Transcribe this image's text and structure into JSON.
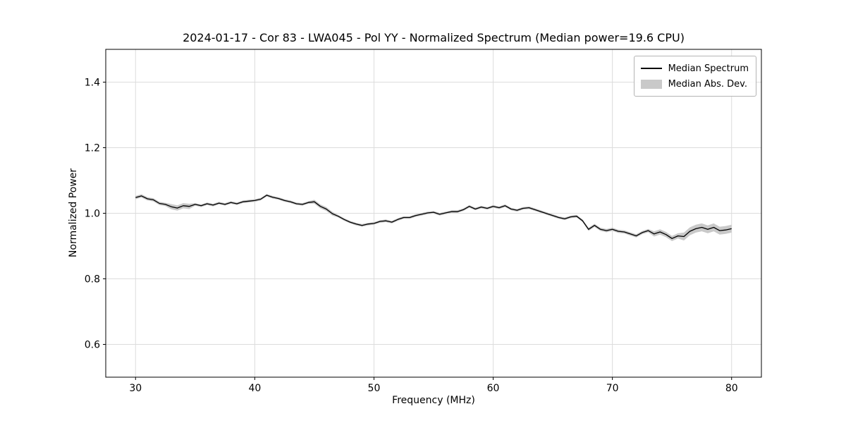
{
  "figure": {
    "title": "2024-01-17 - Cor 83 - LWA045 - Pol YY - Normalized Spectrum (Median power=19.6 CPU)",
    "xlabel": "Frequency (MHz)",
    "ylabel": "Normalized Power"
  },
  "legend": {
    "entries": [
      {
        "label": "Median Spectrum",
        "type": "line",
        "color": "#000000"
      },
      {
        "label": "Median Abs. Dev.",
        "type": "band",
        "color": "#c9c9c9"
      }
    ]
  },
  "chart_data": {
    "type": "line",
    "title": "2024-01-17 - Cor 83 - LWA045 - Pol YY - Normalized Spectrum (Median power=19.6 CPU)",
    "xlabel": "Frequency (MHz)",
    "ylabel": "Normalized Power",
    "xlim": [
      27.5,
      82.5
    ],
    "ylim": [
      0.5,
      1.5
    ],
    "grid": true,
    "legend_position": "upper right",
    "xticks": [
      30,
      40,
      50,
      60,
      70,
      80
    ],
    "xtick_labels": [
      "30",
      "40",
      "50",
      "60",
      "70",
      "80"
    ],
    "yticks": [
      0.6,
      0.8,
      1.0,
      1.2,
      1.4
    ],
    "ytick_labels": [
      "0.6",
      "0.8",
      "1.0",
      "1.2",
      "1.4"
    ],
    "line_color": "#000000",
    "band_color": "#c9c9c9",
    "grid_color": "#dcdcdc",
    "x": [
      30,
      30.5,
      31,
      31.5,
      32,
      32.5,
      33,
      33.5,
      34,
      34.5,
      35,
      35.5,
      36,
      36.5,
      37,
      37.5,
      38,
      38.5,
      39,
      39.5,
      40,
      40.5,
      41,
      41.5,
      42,
      42.5,
      43,
      43.5,
      44,
      44.5,
      45,
      45.5,
      46,
      46.5,
      47,
      47.5,
      48,
      48.5,
      49,
      49.5,
      50,
      50.5,
      51,
      51.5,
      52,
      52.5,
      53,
      53.5,
      54,
      54.5,
      55,
      55.5,
      56,
      56.5,
      57,
      57.5,
      58,
      58.5,
      59,
      59.5,
      60,
      60.5,
      61,
      61.5,
      62,
      62.5,
      63,
      63.5,
      64,
      64.5,
      65,
      65.5,
      66,
      66.5,
      67,
      67.5,
      68,
      68.5,
      69,
      69.5,
      70,
      70.5,
      71,
      71.5,
      72,
      72.5,
      73,
      73.5,
      74,
      74.5,
      75,
      75.5,
      76,
      76.5,
      77,
      77.5,
      78,
      78.5,
      79,
      79.5,
      80
    ],
    "median": [
      1.048,
      1.053,
      1.044,
      1.041,
      1.03,
      1.027,
      1.02,
      1.016,
      1.023,
      1.021,
      1.027,
      1.023,
      1.029,
      1.025,
      1.031,
      1.027,
      1.033,
      1.029,
      1.035,
      1.037,
      1.039,
      1.043,
      1.055,
      1.049,
      1.045,
      1.039,
      1.035,
      1.029,
      1.027,
      1.033,
      1.035,
      1.021,
      1.013,
      0.999,
      0.991,
      0.981,
      0.973,
      0.967,
      0.963,
      0.967,
      0.969,
      0.975,
      0.977,
      0.973,
      0.981,
      0.987,
      0.987,
      0.993,
      0.997,
      1.001,
      1.003,
      0.997,
      1.001,
      1.005,
      1.005,
      1.011,
      1.021,
      1.013,
      1.019,
      1.015,
      1.021,
      1.017,
      1.023,
      1.013,
      1.009,
      1.015,
      1.017,
      1.011,
      1.005,
      0.999,
      0.993,
      0.987,
      0.983,
      0.989,
      0.991,
      0.977,
      0.951,
      0.963,
      0.951,
      0.947,
      0.951,
      0.945,
      0.943,
      0.937,
      0.931,
      0.941,
      0.947,
      0.937,
      0.943,
      0.935,
      0.923,
      0.931,
      0.929,
      0.945,
      0.953,
      0.957,
      0.951,
      0.957,
      0.947,
      0.949,
      0.953
    ],
    "mad": [
      0.005,
      0.005,
      0.005,
      0.005,
      0.005,
      0.005,
      0.008,
      0.008,
      0.008,
      0.008,
      0.004,
      0.004,
      0.004,
      0.004,
      0.004,
      0.004,
      0.004,
      0.004,
      0.004,
      0.004,
      0.004,
      0.004,
      0.004,
      0.004,
      0.004,
      0.004,
      0.004,
      0.004,
      0.004,
      0.004,
      0.006,
      0.006,
      0.006,
      0.006,
      0.004,
      0.004,
      0.004,
      0.004,
      0.004,
      0.004,
      0.004,
      0.004,
      0.004,
      0.004,
      0.004,
      0.004,
      0.004,
      0.004,
      0.004,
      0.004,
      0.004,
      0.004,
      0.004,
      0.004,
      0.004,
      0.004,
      0.004,
      0.004,
      0.004,
      0.004,
      0.004,
      0.004,
      0.004,
      0.004,
      0.004,
      0.004,
      0.004,
      0.004,
      0.004,
      0.004,
      0.004,
      0.004,
      0.004,
      0.004,
      0.004,
      0.004,
      0.005,
      0.005,
      0.005,
      0.005,
      0.005,
      0.005,
      0.005,
      0.005,
      0.005,
      0.005,
      0.005,
      0.008,
      0.008,
      0.008,
      0.008,
      0.008,
      0.012,
      0.012,
      0.012,
      0.012,
      0.012,
      0.012,
      0.012,
      0.012,
      0.012
    ]
  }
}
